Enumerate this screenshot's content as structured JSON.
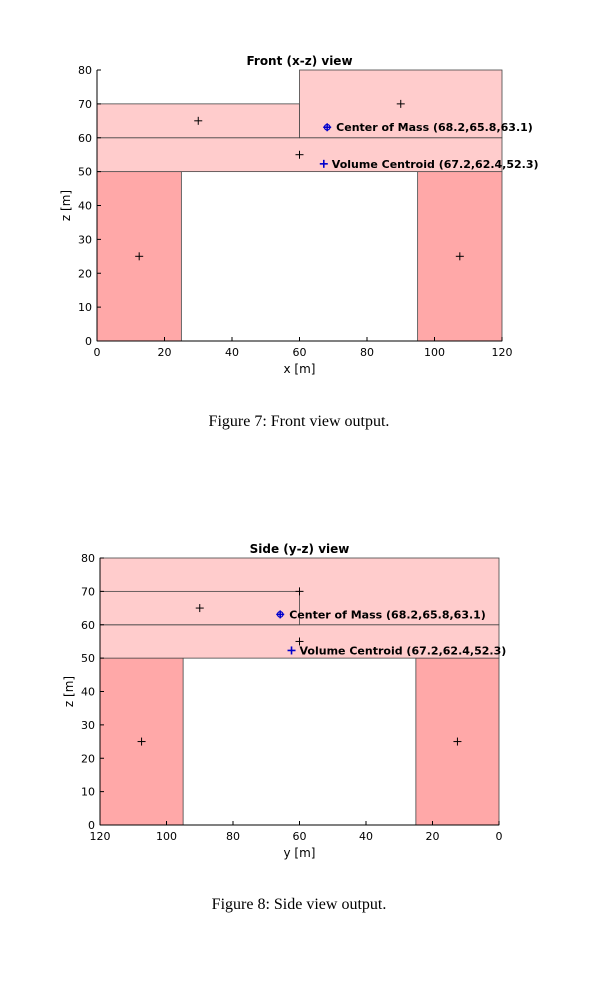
{
  "chart_data": [
    {
      "type": "diagram",
      "title": "Front (x-z) view",
      "xlabel": "x [m]",
      "ylabel": "z [m]",
      "xlim": [
        0,
        120
      ],
      "ylim": [
        0,
        80
      ],
      "x_reversed": false,
      "xticks": [
        0,
        20,
        40,
        60,
        80,
        100,
        120
      ],
      "yticks": [
        0,
        10,
        20,
        30,
        40,
        50,
        60,
        70,
        80
      ],
      "rects": [
        {
          "x": [
            0,
            25
          ],
          "z": [
            0,
            50
          ],
          "fill": "#ffa8a8"
        },
        {
          "x": [
            95,
            120
          ],
          "z": [
            0,
            50
          ],
          "fill": "#ffa8a8"
        },
        {
          "x": [
            0,
            120
          ],
          "z": [
            50,
            60
          ],
          "fill": "#ffcccc"
        },
        {
          "x": [
            0,
            60
          ],
          "z": [
            60,
            70
          ],
          "fill": "#ffcccc"
        },
        {
          "x": [
            60,
            120
          ],
          "z": [
            60,
            80
          ],
          "fill": "#ffcccc"
        }
      ],
      "centroid_marks": [
        {
          "x": 12.5,
          "z": 25
        },
        {
          "x": 107.5,
          "z": 25
        },
        {
          "x": 60,
          "z": 55
        },
        {
          "x": 30,
          "z": 65
        },
        {
          "x": 90,
          "z": 70
        }
      ],
      "center_of_mass": {
        "x": 68.2,
        "z": 63.1,
        "label": "Center of Mass (68.2,65.8,63.1)"
      },
      "volume_centroid": {
        "x": 67.2,
        "z": 52.3,
        "label": "Volume Centroid (67.2,62.4,52.3)"
      }
    },
    {
      "type": "diagram",
      "title": "Side (y-z) view",
      "xlabel": "y [m]",
      "ylabel": "z [m]",
      "xlim": [
        120,
        0
      ],
      "ylim": [
        0,
        80
      ],
      "x_reversed": true,
      "xticks": [
        120,
        100,
        80,
        60,
        40,
        20,
        0
      ],
      "yticks": [
        0,
        10,
        20,
        30,
        40,
        50,
        60,
        70,
        80
      ],
      "rects": [
        {
          "x": [
            95,
            120
          ],
          "z": [
            0,
            50
          ],
          "fill": "#ffa8a8"
        },
        {
          "x": [
            0,
            25
          ],
          "z": [
            0,
            50
          ],
          "fill": "#ffa8a8"
        },
        {
          "x": [
            0,
            120
          ],
          "z": [
            50,
            60
          ],
          "fill": "#ffcccc"
        },
        {
          "x": [
            0,
            120
          ],
          "z": [
            60,
            80
          ],
          "fill": "#ffcccc"
        },
        {
          "x": [
            60,
            120
          ],
          "z": [
            60,
            70
          ],
          "fill": "#ffcccc"
        }
      ],
      "centroid_marks": [
        {
          "x": 107.5,
          "z": 25
        },
        {
          "x": 12.5,
          "z": 25
        },
        {
          "x": 60,
          "z": 55
        },
        {
          "x": 90,
          "z": 65
        },
        {
          "x": 60,
          "z": 70
        }
      ],
      "center_of_mass": {
        "x": 65.8,
        "z": 63.1,
        "label": "Center of Mass (68.2,65.8,63.1)"
      },
      "volume_centroid": {
        "x": 62.4,
        "z": 52.3,
        "label": "Volume Centroid (67.2,62.4,52.3)"
      }
    }
  ],
  "captions": {
    "fig7": "Figure 7: Front view output.",
    "fig8": "Figure 8: Side view output."
  },
  "colors": {
    "column_fill": "#ffa8a8",
    "slab_fill": "#ffcccc",
    "marker_blue": "#0000cc"
  }
}
